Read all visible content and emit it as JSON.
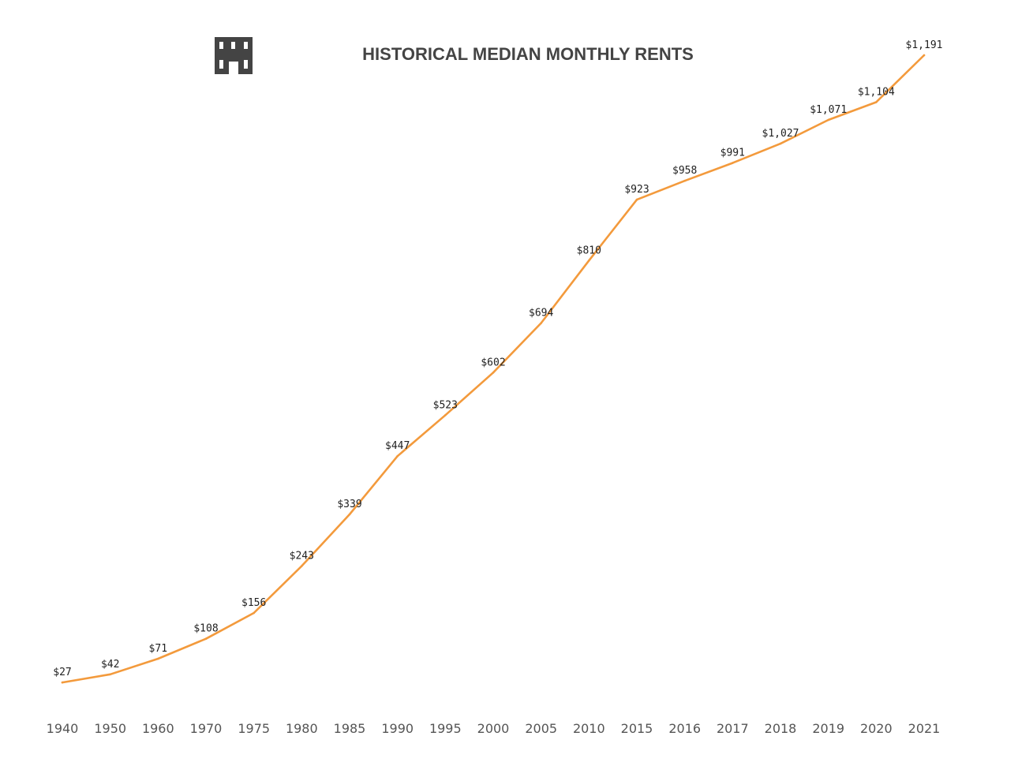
{
  "chart_data": {
    "type": "line",
    "title": "HISTORICAL MEDIAN MONTHLY RENTS",
    "xlabel": "",
    "ylabel": "",
    "icon": "apartment-building-icon",
    "categories": [
      "1940",
      "1950",
      "1960",
      "1970",
      "1975",
      "1980",
      "1985",
      "1990",
      "1995",
      "2000",
      "2005",
      "2010",
      "2015",
      "2016",
      "2017",
      "2018",
      "2019",
      "2020",
      "2021"
    ],
    "series": [
      {
        "values": [
          27,
          42,
          71,
          108,
          156,
          243,
          339,
          447,
          523,
          602,
          694,
          810,
          923,
          958,
          991,
          1027,
          1071,
          1104,
          1191
        ],
        "labels": [
          "$27",
          "$42",
          "$71",
          "$108",
          "$156",
          "$243",
          "$339",
          "$447",
          "$523",
          "$602",
          "$694",
          "$810",
          "$923",
          "$958",
          "$991",
          "$1,027",
          "$1,071",
          "$1,104",
          "$1,191"
        ]
      }
    ],
    "ylim": [
      0,
      1200
    ],
    "grid": false,
    "legend": "none",
    "colors": {
      "line": "#f39a3c",
      "title": "#444444",
      "icon": "#444444",
      "tick": "#555555",
      "label": "#222222"
    }
  }
}
